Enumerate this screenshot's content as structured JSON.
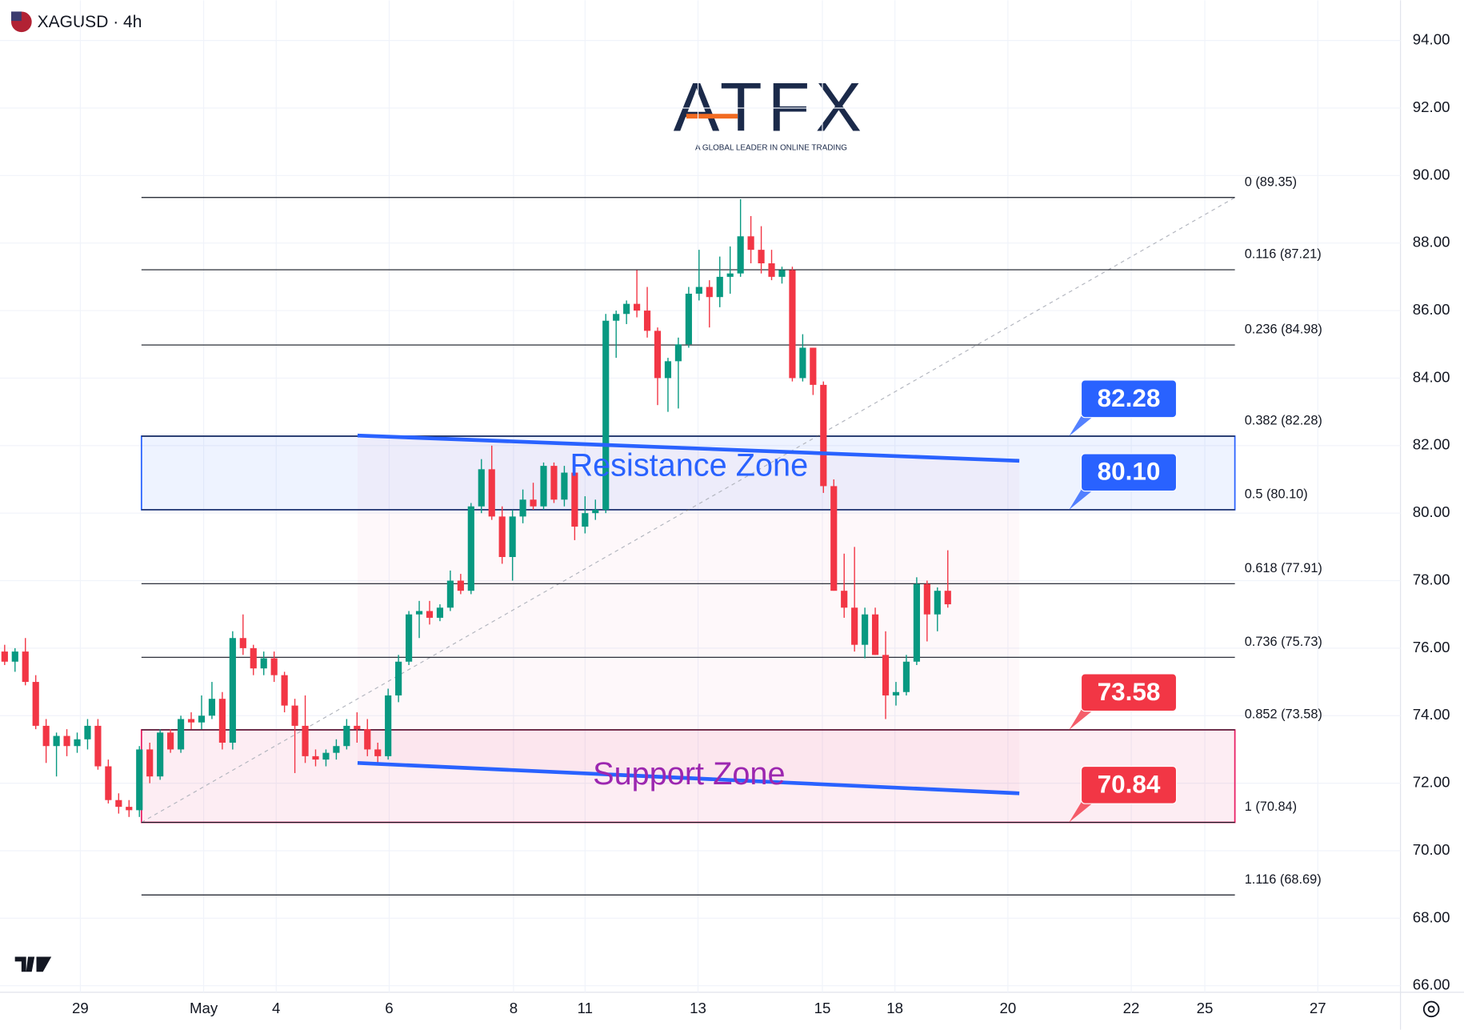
{
  "chart_data": {
    "type": "candlestick",
    "title": "XAGUSD · 4h",
    "logo": {
      "name": "ATFX",
      "tagline": "A GLOBAL LEADER IN ONLINE TRADING"
    },
    "up_color": "#089981",
    "down_color": "#f23645",
    "open": [
      75.9,
      75.6,
      75.9,
      75.0,
      73.7,
      73.1,
      73.4,
      73.1,
      73.3,
      73.7,
      72.5,
      71.5,
      71.3,
      71.2,
      73.0,
      72.2,
      73.5,
      73.0,
      73.9,
      73.8,
      74.0,
      74.5,
      73.2,
      76.3,
      76.0,
      75.4,
      75.7,
      75.2,
      74.3,
      73.7,
      72.8,
      72.7,
      72.9,
      73.1,
      73.7,
      73.6,
      73.0,
      72.8,
      74.6,
      75.6,
      77.0,
      77.1,
      76.9,
      77.2,
      78.0,
      77.7,
      80.2,
      81.3,
      79.9,
      78.7,
      79.9,
      80.4,
      80.2,
      81.4,
      80.4,
      81.2,
      79.6,
      80.0,
      80.1,
      85.7,
      85.9,
      86.2,
      86.0,
      85.4,
      84.0,
      84.5,
      85.0,
      86.5,
      86.7,
      86.4,
      87.0,
      87.1,
      88.2,
      87.8,
      87.4,
      87.0,
      87.2,
      84.0,
      84.9,
      83.8,
      80.8,
      77.7,
      77.2,
      76.1,
      77.0,
      75.8,
      74.6,
      74.7,
      75.6,
      77.9,
      77.0,
      77.7
    ],
    "high": [
      76.1,
      76.0,
      76.3,
      75.2,
      73.9,
      73.5,
      73.6,
      73.5,
      73.9,
      73.9,
      72.7,
      71.7,
      71.5,
      73.1,
      73.2,
      73.6,
      73.6,
      74.0,
      74.1,
      74.6,
      75.0,
      74.7,
      76.5,
      77.0,
      76.1,
      75.9,
      75.9,
      75.3,
      74.5,
      74.6,
      73.0,
      73.0,
      73.3,
      73.9,
      74.1,
      73.9,
      73.2,
      74.8,
      75.8,
      77.1,
      77.4,
      77.4,
      77.3,
      78.3,
      78.2,
      80.3,
      81.6,
      82.0,
      80.2,
      80.1,
      80.7,
      80.9,
      81.5,
      81.5,
      81.4,
      81.4,
      80.5,
      80.4,
      85.9,
      86.0,
      86.3,
      87.2,
      86.7,
      85.5,
      84.6,
      85.2,
      86.7,
      87.8,
      86.9,
      87.6,
      87.9,
      89.3,
      88.8,
      88.5,
      87.8,
      87.3,
      87.3,
      85.3,
      84.9,
      83.9,
      81.0,
      78.8,
      79.0,
      77.2,
      77.2,
      76.5,
      75.0,
      75.8,
      78.1,
      78.0,
      77.8,
      78.9
    ],
    "low": [
      75.5,
      75.3,
      74.9,
      73.6,
      72.6,
      72.2,
      72.8,
      72.9,
      73.0,
      72.4,
      71.4,
      71.1,
      71.0,
      71.0,
      72.0,
      72.1,
      72.9,
      72.9,
      73.6,
      73.6,
      73.9,
      73.0,
      73.0,
      75.8,
      75.2,
      75.2,
      75.0,
      74.1,
      72.3,
      72.6,
      72.5,
      72.5,
      72.7,
      73.0,
      73.2,
      72.8,
      72.6,
      72.7,
      74.4,
      75.5,
      76.3,
      76.7,
      76.8,
      77.1,
      77.6,
      77.6,
      80.0,
      79.8,
      78.5,
      78.0,
      79.7,
      80.1,
      80.1,
      80.3,
      80.2,
      79.2,
      79.4,
      79.8,
      80.0,
      84.6,
      85.6,
      85.8,
      85.2,
      83.2,
      83.0,
      83.1,
      84.9,
      86.3,
      85.5,
      86.1,
      86.5,
      87.0,
      87.4,
      87.1,
      86.9,
      86.8,
      83.9,
      83.9,
      83.5,
      80.6,
      77.7,
      76.9,
      75.9,
      75.7,
      75.8,
      73.9,
      74.3,
      74.6,
      75.5,
      76.2,
      76.5,
      77.2
    ],
    "close": [
      75.6,
      75.9,
      75.0,
      73.7,
      73.1,
      73.4,
      73.1,
      73.3,
      73.7,
      72.5,
      71.5,
      71.3,
      71.2,
      73.0,
      72.2,
      73.5,
      73.0,
      73.9,
      73.8,
      74.0,
      74.5,
      73.2,
      76.3,
      76.0,
      75.4,
      75.7,
      75.2,
      74.3,
      73.7,
      72.8,
      72.7,
      72.9,
      73.1,
      73.7,
      73.6,
      73.0,
      72.8,
      74.6,
      75.6,
      77.0,
      77.1,
      76.9,
      77.2,
      78.0,
      77.7,
      80.2,
      81.3,
      79.9,
      78.7,
      79.9,
      80.4,
      80.2,
      81.4,
      80.4,
      81.2,
      79.6,
      80.0,
      80.1,
      85.7,
      85.9,
      86.2,
      86.0,
      85.4,
      84.0,
      84.5,
      85.0,
      86.5,
      86.7,
      86.4,
      87.0,
      87.1,
      88.2,
      87.8,
      87.4,
      87.0,
      87.2,
      84.0,
      84.9,
      83.8,
      80.8,
      77.7,
      77.2,
      76.1,
      77.0,
      75.8,
      74.6,
      74.7,
      75.6,
      77.9,
      77.0,
      77.7,
      77.3
    ],
    "xlim": [
      -0.45,
      134.68
    ],
    "xticks": [
      {
        "value": 7.3,
        "label": "29"
      },
      {
        "value": 19.2,
        "label": "May"
      },
      {
        "value": 26.2,
        "label": "4"
      },
      {
        "value": 37.1,
        "label": "6"
      },
      {
        "value": 49.1,
        "label": "8"
      },
      {
        "value": 56.0,
        "label": "11"
      },
      {
        "value": 66.9,
        "label": "13"
      },
      {
        "value": 78.9,
        "label": "15"
      },
      {
        "value": 85.9,
        "label": "18"
      },
      {
        "value": 96.8,
        "label": "20"
      },
      {
        "value": 108.7,
        "label": "22"
      },
      {
        "value": 115.8,
        "label": "25"
      },
      {
        "value": 126.7,
        "label": "27"
      }
    ],
    "ylim": [
      66,
      94
    ],
    "yticks": [
      {
        "value": 66,
        "label": "66.00"
      },
      {
        "value": 68,
        "label": "68.00"
      },
      {
        "value": 70,
        "label": "70.00"
      },
      {
        "value": 72,
        "label": "72.00"
      },
      {
        "value": 74,
        "label": "74.00"
      },
      {
        "value": 76,
        "label": "76.00"
      },
      {
        "value": 78,
        "label": "78.00"
      },
      {
        "value": 80,
        "label": "80.00"
      },
      {
        "value": 82,
        "label": "82.00"
      },
      {
        "value": 84,
        "label": "84.00"
      },
      {
        "value": 86,
        "label": "86.00"
      },
      {
        "value": 88,
        "label": "88.00"
      },
      {
        "value": 90,
        "label": "90.00"
      },
      {
        "value": 92,
        "label": "92.00"
      },
      {
        "value": 94,
        "label": "94.00"
      }
    ],
    "fib_x": [
      13.2,
      118.7
    ],
    "fib_levels": [
      {
        "value": 89.35,
        "label": "0 (89.35)"
      },
      {
        "value": 87.21,
        "label": "0.116 (87.21)"
      },
      {
        "value": 84.98,
        "label": "0.236 (84.98)"
      },
      {
        "value": 82.28,
        "label": "0.382 (82.28)"
      },
      {
        "value": 80.1,
        "label": "0.5 (80.10)"
      },
      {
        "value": 77.91,
        "label": "0.618 (77.91)"
      },
      {
        "value": 75.73,
        "label": "0.736 (75.73)"
      },
      {
        "value": 73.58,
        "label": "0.852 (73.58)"
      },
      {
        "value": 70.84,
        "label": "1 (70.84)"
      },
      {
        "value": 68.69,
        "label": "1.116 (68.69)"
      }
    ],
    "zones": [
      {
        "name": "Resistance Zone",
        "range": [
          80.1,
          82.28
        ],
        "color": "#2962ff",
        "label_color": "#2962ff",
        "trend_x": [
          34.05,
          97.9
        ],
        "trend_y": [
          82.3,
          81.55
        ]
      },
      {
        "name": "Support Zone",
        "range": [
          70.84,
          73.58
        ],
        "color": "#e91e63",
        "label_color": "#9c27b0",
        "trend_x": [
          34.05,
          97.9
        ],
        "trend_y": [
          72.6,
          71.7
        ]
      }
    ],
    "price_tags": [
      {
        "value": 82.28,
        "label": "82.28",
        "color": "#2962ff"
      },
      {
        "value": 80.1,
        "label": "80.10",
        "color": "#2962ff"
      },
      {
        "value": 73.58,
        "label": "73.58",
        "color": "#f23645"
      },
      {
        "value": 70.84,
        "label": "70.84",
        "color": "#f23645"
      }
    ]
  }
}
